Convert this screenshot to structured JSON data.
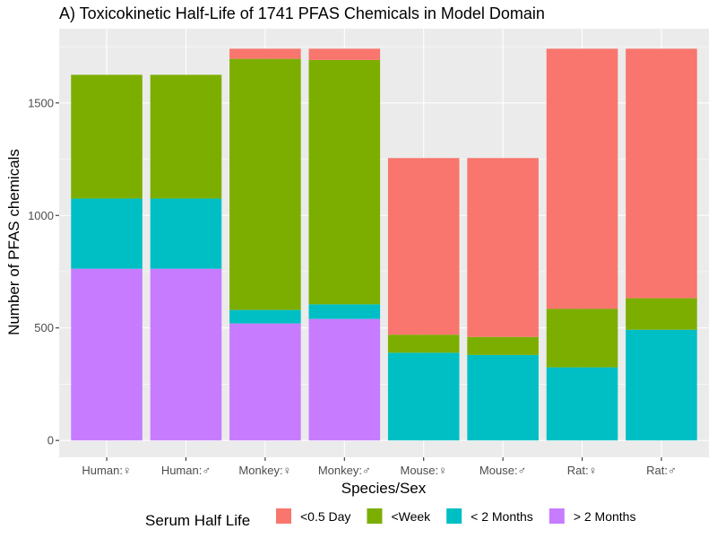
{
  "chart_data": {
    "type": "bar",
    "stacked": true,
    "title": "A) Toxicokinetic Half-Life of 1741 PFAS Chemicals in Model Domain",
    "xlabel": "Species/Sex",
    "ylabel": "Number of PFAS chemicals",
    "ylim": [
      -75,
      1830
    ],
    "yticks": [
      0,
      500,
      1000,
      1500
    ],
    "grid": true,
    "legend_position": "bottom",
    "legend_title": "Serum Half Life",
    "categories": [
      "Human:♀",
      "Human:♂",
      "Monkey:♀",
      "Monkey:♂",
      "Mouse:♀",
      "Mouse:♂",
      "Rat:♀",
      "Rat:♂"
    ],
    "series": [
      {
        "name": "> 2 Months",
        "color": "#C77CFF",
        "values": [
          763,
          763,
          520,
          540,
          0,
          0,
          0,
          0
        ]
      },
      {
        "name": "< 2 Months",
        "color": "#00BFC4",
        "values": [
          312,
          312,
          60,
          65,
          390,
          380,
          325,
          492
        ]
      },
      {
        "name": "<Week",
        "color": "#7CAE00",
        "values": [
          550,
          550,
          1116,
          1086,
          80,
          80,
          260,
          140
        ]
      },
      {
        "name": "<0.5 Day",
        "color": "#F8766D",
        "values": [
          0,
          0,
          45,
          50,
          785,
          795,
          1156,
          1109
        ]
      }
    ]
  }
}
